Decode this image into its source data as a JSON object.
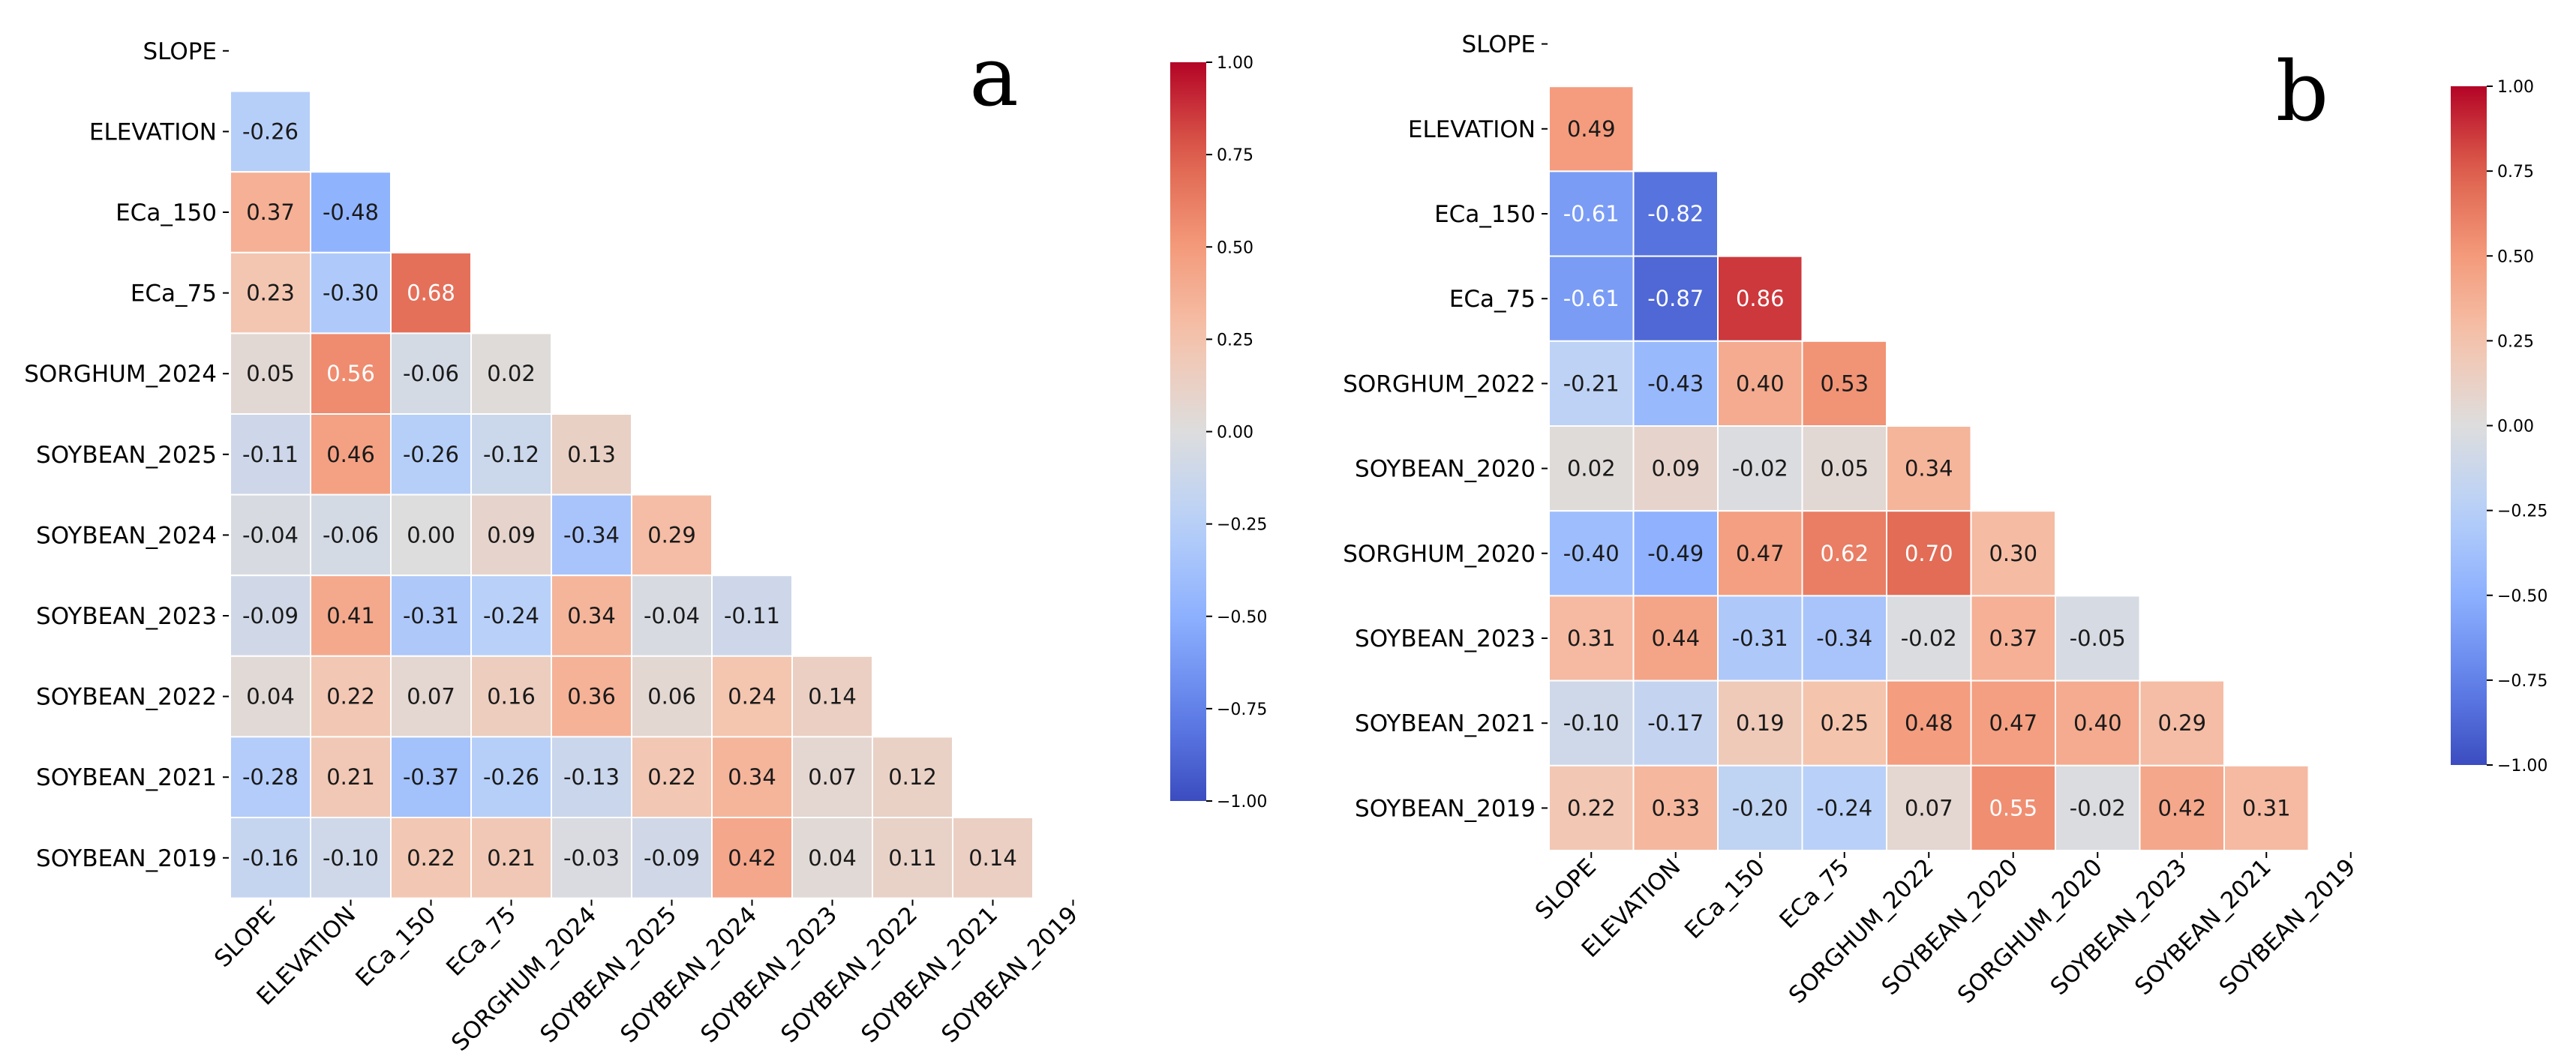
{
  "chart_data": [
    {
      "type": "heatmap",
      "panel_label": "a",
      "labels": [
        "SLOPE",
        "ELEVATION",
        "ECa_150",
        "ECa_75",
        "SORGHUM_2024",
        "SOYBEAN_2025",
        "SOYBEAN_2024",
        "SOYBEAN_2023",
        "SOYBEAN_2022",
        "SOYBEAN_2021",
        "SOYBEAN_2019"
      ],
      "lower_triangle": [
        [],
        [
          -0.26
        ],
        [
          0.37,
          -0.48
        ],
        [
          0.23,
          -0.3,
          0.68
        ],
        [
          0.05,
          0.56,
          -0.06,
          0.02
        ],
        [
          -0.11,
          0.46,
          -0.26,
          -0.12,
          0.13
        ],
        [
          -0.04,
          -0.06,
          0.0,
          0.09,
          -0.34,
          0.29
        ],
        [
          -0.09,
          0.41,
          -0.31,
          -0.24,
          0.34,
          -0.04,
          -0.11
        ],
        [
          0.04,
          0.22,
          0.07,
          0.16,
          0.36,
          0.06,
          0.24,
          0.14
        ],
        [
          -0.28,
          0.21,
          -0.37,
          -0.26,
          -0.13,
          0.22,
          0.34,
          0.07,
          0.12
        ],
        [
          -0.16,
          -0.1,
          0.22,
          0.21,
          -0.03,
          -0.09,
          0.42,
          0.04,
          0.11,
          0.14
        ]
      ],
      "colorbar": {
        "range": [
          -1.0,
          1.0
        ],
        "ticks": [
          "1.00",
          "0.75",
          "0.50",
          "0.25",
          "0.00",
          "−0.25",
          "−0.50",
          "−0.75",
          "−1.00"
        ]
      }
    },
    {
      "type": "heatmap",
      "panel_label": "b",
      "labels": [
        "SLOPE",
        "ELEVATION",
        "ECa_150",
        "ECa_75",
        "SORGHUM_2022",
        "SOYBEAN_2020",
        "SORGHUM_2020",
        "SOYBEAN_2023",
        "SOYBEAN_2021",
        "SOYBEAN_2019"
      ],
      "lower_triangle": [
        [],
        [
          0.49
        ],
        [
          -0.61,
          -0.82
        ],
        [
          -0.61,
          -0.87,
          0.86
        ],
        [
          -0.21,
          -0.43,
          0.4,
          0.53
        ],
        [
          0.02,
          0.09,
          -0.02,
          0.05,
          0.34
        ],
        [
          -0.4,
          -0.49,
          0.47,
          0.62,
          0.7,
          0.3
        ],
        [
          0.31,
          0.44,
          -0.31,
          -0.34,
          -0.02,
          0.37,
          -0.05
        ],
        [
          -0.1,
          -0.17,
          0.19,
          0.25,
          0.48,
          0.47,
          0.4,
          0.29
        ],
        [
          0.22,
          0.33,
          -0.2,
          -0.24,
          0.07,
          0.55,
          -0.02,
          0.42,
          0.31
        ]
      ],
      "colorbar": {
        "range": [
          -1.0,
          1.0
        ],
        "ticks": [
          "1.00",
          "0.75",
          "0.50",
          "0.25",
          "0.00",
          "−0.25",
          "−0.50",
          "−0.75",
          "−1.00"
        ]
      }
    }
  ]
}
